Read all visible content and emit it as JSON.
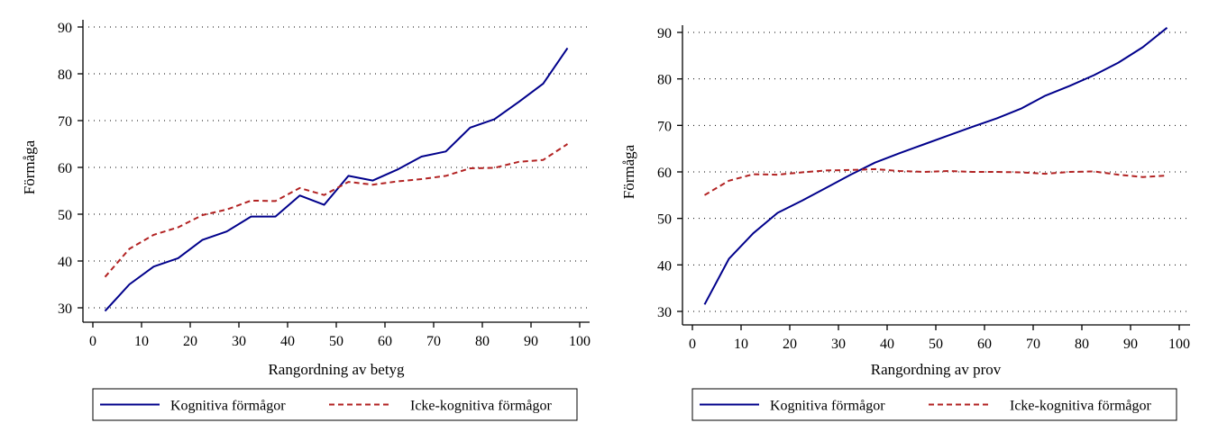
{
  "chart_data": [
    {
      "type": "line",
      "title": "",
      "xlabel": "Rangordning av betyg",
      "ylabel": "Förmåga",
      "xlim": [
        0,
        100
      ],
      "ylim": [
        30,
        90
      ],
      "xticks": [
        0,
        10,
        20,
        30,
        40,
        50,
        60,
        70,
        80,
        90,
        100
      ],
      "yticks": [
        30,
        40,
        50,
        60,
        70,
        80,
        90
      ],
      "grid": true,
      "legend_position": "bottom",
      "x": [
        2.5,
        7.5,
        12.5,
        17.5,
        22.5,
        27.5,
        32.5,
        37.5,
        42.5,
        47.5,
        52.5,
        57.5,
        62.5,
        67.5,
        72.5,
        77.5,
        82.5,
        87.5,
        92.5,
        97.5
      ],
      "series": [
        {
          "name": "Kognitiva förmågor",
          "color": "#00008b",
          "style": "solid",
          "values": [
            29.3,
            35.0,
            38.8,
            40.6,
            44.5,
            46.3,
            49.5,
            49.5,
            54.0,
            52.0,
            58.2,
            57.2,
            59.5,
            62.3,
            63.4,
            68.5,
            70.3,
            74.0,
            77.9,
            85.5
          ]
        },
        {
          "name": "Icke-kognitiva förmågor",
          "color": "#b22222",
          "style": "dashed",
          "values": [
            36.6,
            42.6,
            45.6,
            47.2,
            49.8,
            51.0,
            52.9,
            52.8,
            55.6,
            54.1,
            56.9,
            56.3,
            57.0,
            57.5,
            58.2,
            59.8,
            59.9,
            61.2,
            61.6,
            65.0
          ]
        }
      ]
    },
    {
      "type": "line",
      "title": "",
      "xlabel": "Rangordning av prov",
      "ylabel": "Förmåga",
      "xlim": [
        0,
        100
      ],
      "ylim": [
        30,
        90
      ],
      "xticks": [
        0,
        10,
        20,
        30,
        40,
        50,
        60,
        70,
        80,
        90,
        100
      ],
      "yticks": [
        30,
        40,
        50,
        60,
        70,
        80,
        90
      ],
      "grid": true,
      "legend_position": "bottom",
      "x": [
        2.5,
        7.5,
        12.5,
        17.5,
        22.5,
        27.5,
        32.5,
        37.5,
        42.5,
        47.5,
        52.5,
        57.5,
        62.5,
        67.5,
        72.5,
        77.5,
        82.5,
        87.5,
        92.5,
        97.5
      ],
      "series": [
        {
          "name": "Kognitiva förmågor",
          "color": "#00008b",
          "style": "solid",
          "values": [
            31.5,
            41.3,
            46.8,
            51.2,
            53.8,
            56.6,
            59.4,
            62.0,
            64.0,
            65.9,
            67.8,
            69.7,
            71.5,
            73.6,
            76.4,
            78.5,
            80.8,
            83.5,
            86.8,
            91.0
          ]
        },
        {
          "name": "Icke-kognitiva förmågor",
          "color": "#b22222",
          "style": "dashed",
          "values": [
            55.0,
            58.1,
            59.5,
            59.4,
            59.9,
            60.3,
            60.4,
            60.6,
            60.2,
            60.0,
            60.2,
            60.0,
            60.0,
            59.9,
            59.6,
            60.0,
            60.1,
            59.4,
            58.9,
            59.2
          ]
        }
      ]
    }
  ]
}
